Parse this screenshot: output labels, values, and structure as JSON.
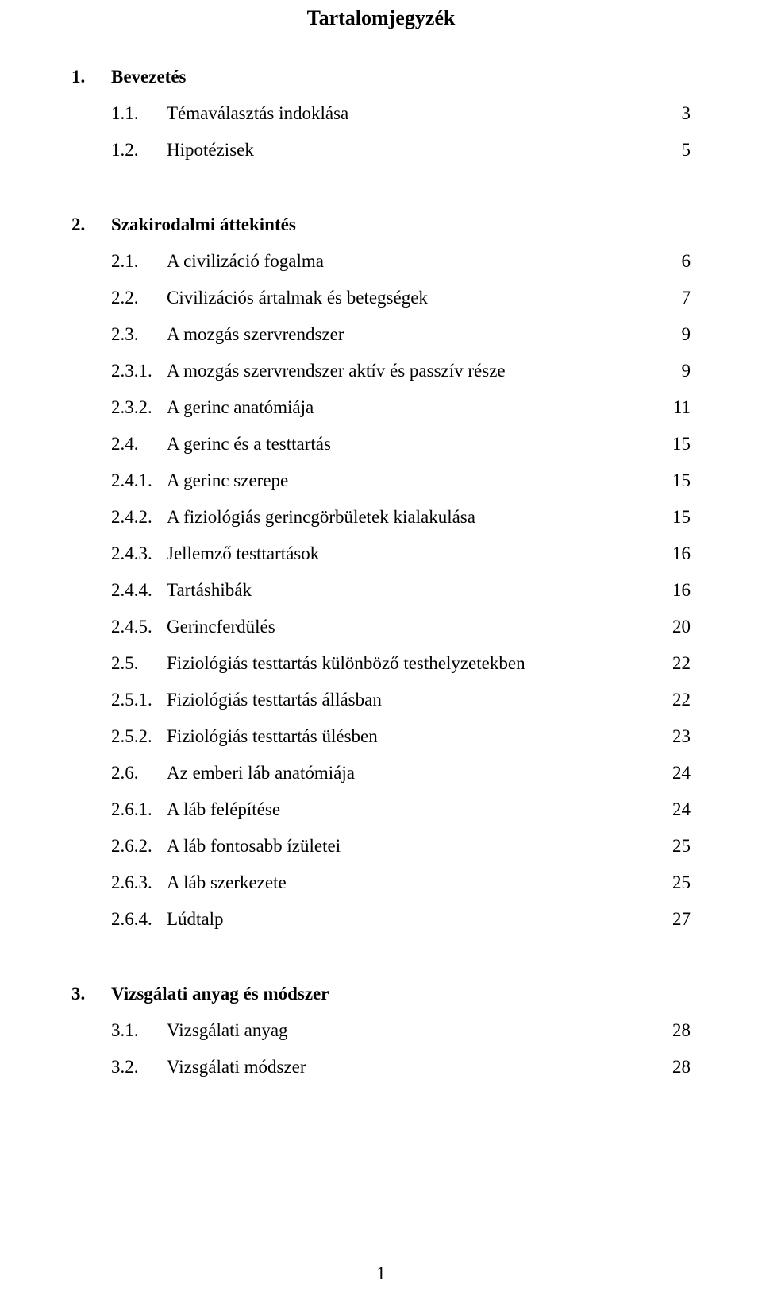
{
  "colors": {
    "background": "#ffffff",
    "text": "#000000"
  },
  "typography": {
    "font_family": "Times New Roman",
    "title_fontsize": 26,
    "body_fontsize": 23,
    "line_height": 2.0
  },
  "title": "Tartalomjegyzék",
  "page_number": "1",
  "sections": [
    {
      "heading": {
        "num": "1.",
        "label": "Bevezetés"
      },
      "items": [
        {
          "level": 2,
          "num": "1.1.",
          "label": "Témaválasztás indoklása",
          "page": "3"
        },
        {
          "level": 2,
          "num": "1.2.",
          "label": "Hipotézisek",
          "page": "5"
        }
      ]
    },
    {
      "heading": {
        "num": "2.",
        "label": "Szakirodalmi áttekintés"
      },
      "items": [
        {
          "level": 2,
          "num": "2.1.",
          "label": "A civilizáció fogalma",
          "page": "6"
        },
        {
          "level": 2,
          "num": "2.2.",
          "label": "Civilizációs ártalmak és betegségek",
          "page": "7"
        },
        {
          "level": 2,
          "num": "2.3.",
          "label": "A mozgás szervrendszer",
          "page": "9"
        },
        {
          "level": 3,
          "num": "2.3.1.",
          "label": "A mozgás szervrendszer aktív és passzív része",
          "page": "9"
        },
        {
          "level": 3,
          "num": "2.3.2.",
          "label": "A gerinc anatómiája",
          "page": "11"
        },
        {
          "level": 2,
          "num": "2.4.",
          "label": "A gerinc és a testtartás",
          "page": "15"
        },
        {
          "level": 3,
          "num": "2.4.1.",
          "label": "A gerinc szerepe",
          "page": "15"
        },
        {
          "level": 3,
          "num": "2.4.2.",
          "label": "A fiziológiás gerincgörbületek kialakulása",
          "page": "15"
        },
        {
          "level": 3,
          "num": "2.4.3.",
          "label": "Jellemző testtartások",
          "page": "16"
        },
        {
          "level": 3,
          "num": "2.4.4.",
          "label": "Tartáshibák",
          "page": "16"
        },
        {
          "level": 3,
          "num": "2.4.5.",
          "label": "Gerincferdülés",
          "page": "20"
        },
        {
          "level": 2,
          "num": "2.5.",
          "label": "Fiziológiás testtartás különböző testhelyzetekben",
          "page": "22"
        },
        {
          "level": 3,
          "num": "2.5.1.",
          "label": "Fiziológiás testtartás állásban",
          "page": "22"
        },
        {
          "level": 3,
          "num": "2.5.2.",
          "label": "Fiziológiás testtartás ülésben",
          "page": "23"
        },
        {
          "level": 2,
          "num": "2.6.",
          "label": "Az emberi láb anatómiája",
          "page": "24"
        },
        {
          "level": 3,
          "num": "2.6.1.",
          "label": "A láb felépítése",
          "page": "24"
        },
        {
          "level": 3,
          "num": "2.6.2.",
          "label": "A láb fontosabb ízületei",
          "page": "25"
        },
        {
          "level": 3,
          "num": "2.6.3.",
          "label": "A láb szerkezete",
          "page": "25"
        },
        {
          "level": 3,
          "num": "2.6.4.",
          "label": "Lúdtalp",
          "page": "27"
        }
      ]
    },
    {
      "heading": {
        "num": "3.",
        "label": "Vizsgálati anyag és módszer"
      },
      "items": [
        {
          "level": 2,
          "num": "3.1.",
          "label": "Vizsgálati anyag",
          "page": "28"
        },
        {
          "level": 2,
          "num": "3.2.",
          "label": "Vizsgálati módszer",
          "page": "28"
        }
      ]
    }
  ]
}
